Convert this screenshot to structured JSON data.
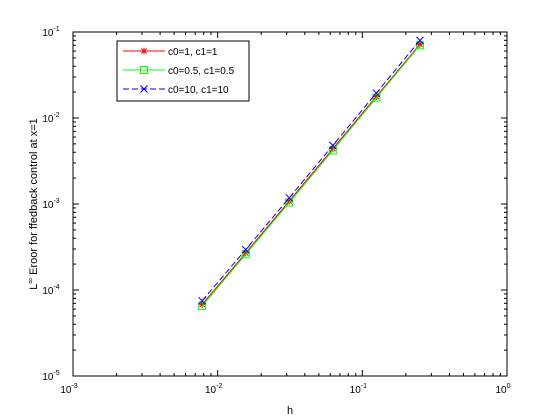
{
  "chart_data": {
    "type": "line",
    "xscale": "log",
    "yscale": "log",
    "xlim": [
      0.001,
      1
    ],
    "ylim": [
      1e-05,
      0.1
    ],
    "xlabel": "h",
    "ylabel": {
      "prefix": "L",
      "superscript": "∞",
      "text": " Eroor for ffedback control at x=1"
    },
    "x_ticks": [
      {
        "value": 0.001,
        "base": "10",
        "exp": "-3"
      },
      {
        "value": 0.01,
        "base": "10",
        "exp": "-2"
      },
      {
        "value": 0.1,
        "base": "10",
        "exp": "-1"
      },
      {
        "value": 1,
        "base": "10",
        "exp": "0"
      }
    ],
    "y_ticks": [
      {
        "value": 1e-05,
        "base": "10",
        "exp": "-5"
      },
      {
        "value": 0.0001,
        "base": "10",
        "exp": "-4"
      },
      {
        "value": 0.001,
        "base": "10",
        "exp": "-3"
      },
      {
        "value": 0.01,
        "base": "10",
        "exp": "-2"
      },
      {
        "value": 0.1,
        "base": "10",
        "exp": "-1"
      }
    ],
    "grid": false,
    "legend_position": "top-left",
    "x": [
      0.0078125,
      0.015625,
      0.03125,
      0.0625,
      0.125,
      0.25
    ],
    "series": [
      {
        "name": "c0=1, c1=1",
        "values": [
          6.8e-05,
          0.00027,
          0.00108,
          0.0044,
          0.0178,
          0.072
        ],
        "color": "#ff0000",
        "line_style": "solid",
        "marker": "star"
      },
      {
        "name": "c0=0.5, c1=0.5",
        "values": [
          6.5e-05,
          0.00026,
          0.00104,
          0.0042,
          0.0172,
          0.07
        ],
        "color": "#00ff00",
        "line_style": "solid",
        "marker": "square"
      },
      {
        "name": "c0=10, c1=10",
        "values": [
          7.5e-05,
          0.000295,
          0.00118,
          0.0048,
          0.0195,
          0.08
        ],
        "color": "#0000ff",
        "line_style": "dashed",
        "marker": "x"
      }
    ]
  }
}
